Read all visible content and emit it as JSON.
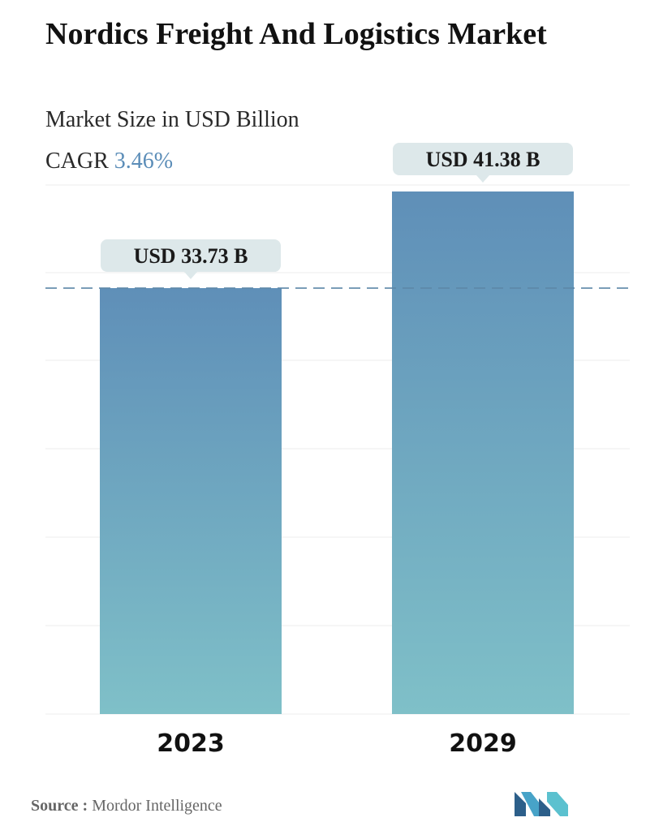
{
  "header": {
    "title": "Nordics Freight And Logistics Market",
    "subtitle": "Market Size in USD Billion",
    "cagr_label": "CAGR",
    "cagr_value": "3.46%"
  },
  "chart_data": {
    "type": "bar",
    "categories": [
      "2023",
      "2029"
    ],
    "values": [
      33.73,
      41.38
    ],
    "value_labels": [
      "USD 33.73 B",
      "USD 41.38 B"
    ],
    "grid": true,
    "reference_line": "dashed line at the 2023 value"
  },
  "footer": {
    "source_label": "Source :",
    "source_text": "Mordor Intelligence"
  },
  "colors": {
    "bar_top": "#5f8fb8",
    "bar_bottom": "#7fc0c8",
    "label_bg": "#dde8ea",
    "dash_line": "#5d87a8",
    "cagr_accent": "#5b8db8"
  },
  "icons": {
    "brand_logo": "mordor-intelligence-logo-icon"
  }
}
